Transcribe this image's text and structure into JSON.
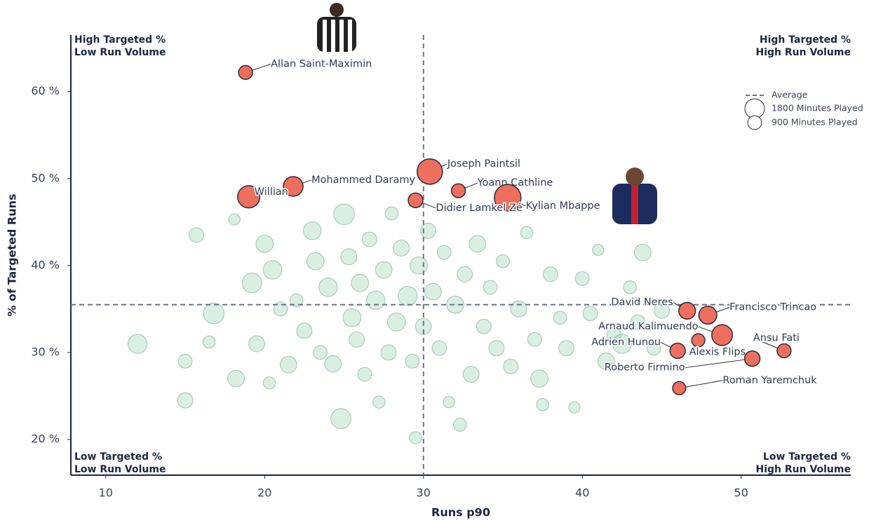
{
  "chart_data": {
    "type": "scatter",
    "x_label": "Runs p90",
    "y_label": "% of Targeted Runs",
    "xlim": [
      7.8,
      56.9
    ],
    "ylim": [
      15.9,
      66.5
    ],
    "xticks": [
      10,
      20,
      30,
      40,
      50
    ],
    "yticks": [
      {
        "value": 20,
        "label": "20 %"
      },
      {
        "value": 30,
        "label": "30 %"
      },
      {
        "value": 40,
        "label": "40 %"
      },
      {
        "value": 50,
        "label": "50 %"
      },
      {
        "value": 60,
        "label": "60 %"
      }
    ],
    "average": {
      "label": "Average",
      "x": 30,
      "y": 35.5
    },
    "size_legend": [
      {
        "value": 1800,
        "label": "1800 Minutes Played"
      },
      {
        "value": 900,
        "label": "900 Minutes Played"
      }
    ],
    "quadrants": [
      {
        "corner": "top-left",
        "lines": [
          "High Targeted %",
          "Low Run Volume"
        ]
      },
      {
        "corner": "top-right",
        "lines": [
          "High Targeted %",
          "High Run Volume"
        ]
      },
      {
        "corner": "bottom-left",
        "lines": [
          "Low Targeted %",
          "Low Run Volume"
        ]
      },
      {
        "corner": "bottom-right",
        "lines": [
          "Low Targeted %",
          "High Run Volume"
        ]
      }
    ],
    "background": {
      "color": "#8fd1ab",
      "x": [
        12,
        15,
        15,
        16.5,
        15.7,
        16.8,
        18.1,
        18.2,
        19.2,
        19.5,
        20,
        20.3,
        20.5,
        21,
        21.5,
        22,
        22.5,
        23,
        23.2,
        23.5,
        24,
        24.3,
        24.8,
        25,
        25.3,
        25.5,
        25.8,
        26,
        26.3,
        26.6,
        27,
        27.2,
        27.5,
        27.8,
        28,
        28.3,
        28.6,
        29,
        29.3,
        29.5,
        29.7,
        30,
        30.3,
        30.6,
        31,
        31.3,
        31.6,
        32,
        32.3,
        32.6,
        33,
        33.4,
        33.8,
        34.2,
        34.6,
        35,
        35.5,
        36,
        36.5,
        37,
        37.3,
        37.5,
        38,
        38.6,
        39,
        39.5,
        40,
        40.5,
        41,
        41.5,
        42,
        42.5,
        43,
        43.5,
        43.8,
        44.5,
        45
      ],
      "y": [
        31,
        29,
        24.5,
        31.2,
        43.5,
        34.5,
        45.3,
        27,
        38,
        31,
        42.5,
        26.5,
        39.5,
        35,
        28.6,
        36,
        32.5,
        44,
        40.5,
        30,
        37.5,
        28.7,
        22.4,
        45.9,
        41,
        34,
        31.5,
        38,
        27.5,
        43,
        36,
        24.3,
        39.5,
        30,
        46,
        33.5,
        42,
        36.5,
        29,
        20.2,
        40,
        33,
        44,
        37,
        30.5,
        41.5,
        24.3,
        35.5,
        21.7,
        39,
        27.5,
        42.5,
        33,
        37.5,
        30.5,
        40.5,
        28.4,
        35,
        43.8,
        31.5,
        27,
        24,
        39,
        34,
        30.5,
        23.7,
        38.5,
        34.5,
        41.8,
        29,
        32,
        31,
        37.5,
        33.5,
        41.5,
        30.5,
        34.8
      ],
      "size": [
        1700,
        900,
        1100,
        700,
        1000,
        2000,
        600,
        1300,
        1800,
        1200,
        1400,
        700,
        1600,
        900,
        1300,
        800,
        1100,
        1500,
        1400,
        900,
        1600,
        1300,
        1900,
        2000,
        1200,
        1500,
        1100,
        1400,
        900,
        1000,
        1600,
        700,
        1300,
        1100,
        800,
        1500,
        1200,
        1700,
        900,
        700,
        1400,
        1200,
        1100,
        1300,
        1000,
        900,
        600,
        1400,
        800,
        1100,
        1200,
        1300,
        1000,
        900,
        1100,
        800,
        1000,
        1200,
        700,
        900,
        1400,
        700,
        1000,
        800,
        1100,
        600,
        900,
        1000,
        600,
        1300,
        900,
        1700,
        800,
        1000,
        1300,
        900,
        1100
      ]
    },
    "highlighted": {
      "color": "#ee6f5e",
      "names": [
        "Allan Saint-Maximin",
        "Mohammed Daramy",
        "Willian",
        "Joseph Paintsil",
        "Yoann Cathline",
        "Kylian Mbappe",
        "Didier Lamkel Zé",
        "David Neres",
        "Francisco Trincao",
        "Arnaud Kalimuendo",
        "Ansu Fati",
        "Adrien Hunou",
        "Alexis Flips",
        "Roberto Firmino",
        "Roman Yaremchuk"
      ],
      "x": [
        18.8,
        21.8,
        19.0,
        30.4,
        32.2,
        35.3,
        29.5,
        46.6,
        47.9,
        48.8,
        52.7,
        46.0,
        47.3,
        50.7,
        46.1
      ],
      "y": [
        62.2,
        49.1,
        47.9,
        50.8,
        48.6,
        47.8,
        47.5,
        34.8,
        34.3,
        32.0,
        30.2,
        30.2,
        31.4,
        29.3,
        25.9
      ],
      "size": [
        900,
        1800,
        2300,
        3000,
        900,
        3300,
        1000,
        1300,
        1500,
        2000,
        900,
        1100,
        800,
        1100,
        800
      ]
    }
  }
}
